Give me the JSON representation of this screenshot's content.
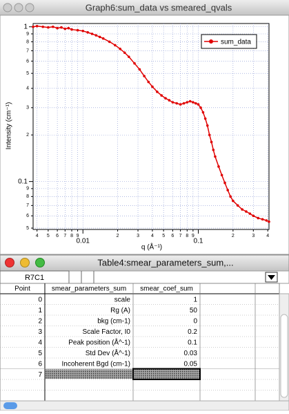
{
  "graph_window": {
    "title": "Graph6:sum_data vs smeared_qvals"
  },
  "chart_data": {
    "type": "line",
    "x_label": "q (Å⁻¹)",
    "y_label": "Intensity (cm⁻¹)",
    "log_x": true,
    "log_y": true,
    "grid": true,
    "legend": "top-right",
    "xlim": [
      0.0037,
      0.41
    ],
    "ylim": [
      0.049,
      1.05
    ],
    "xticks": [
      {
        "value": 0.004,
        "label": "4"
      },
      {
        "value": 0.005,
        "label": "5"
      },
      {
        "value": 0.006,
        "label": "6"
      },
      {
        "value": 0.007,
        "label": "7"
      },
      {
        "value": 0.008,
        "label": "8"
      },
      {
        "value": 0.009,
        "label": "9"
      },
      0.01,
      {
        "value": 0.02,
        "label": "2"
      },
      {
        "value": 0.03,
        "label": "3"
      },
      {
        "value": 0.04,
        "label": "4"
      },
      {
        "value": 0.05,
        "label": "5"
      },
      {
        "value": 0.06,
        "label": "6"
      },
      {
        "value": 0.07,
        "label": "7"
      },
      {
        "value": 0.08,
        "label": "8"
      },
      {
        "value": 0.09,
        "label": "9"
      },
      0.1,
      {
        "value": 0.2,
        "label": "2"
      },
      {
        "value": 0.3,
        "label": "3"
      },
      {
        "value": 0.4,
        "label": "4"
      }
    ],
    "yticks": [
      1,
      {
        "value": 0.9,
        "label": "9"
      },
      {
        "value": 0.8,
        "label": "8"
      },
      {
        "value": 0.7,
        "label": "7"
      },
      {
        "value": 0.6,
        "label": "6"
      },
      {
        "value": 0.5,
        "label": "5"
      },
      {
        "value": 0.4,
        "label": "4"
      },
      {
        "value": 0.3,
        "label": "3"
      },
      {
        "value": 0.2,
        "label": "2"
      },
      0.1,
      {
        "value": 0.09,
        "label": "9"
      },
      {
        "value": 0.08,
        "label": "8"
      },
      {
        "value": 0.07,
        "label": "7"
      },
      {
        "value": 0.06,
        "label": "6"
      },
      {
        "value": 0.05,
        "label": "5"
      }
    ],
    "x": [
      0.0037,
      0.004,
      0.0045,
      0.005,
      0.0055,
      0.006,
      0.0065,
      0.007,
      0.0075,
      0.008,
      0.009,
      0.01,
      0.011,
      0.012,
      0.013,
      0.014,
      0.015,
      0.017,
      0.019,
      0.021,
      0.023,
      0.025,
      0.028,
      0.031,
      0.034,
      0.037,
      0.04,
      0.044,
      0.048,
      0.052,
      0.056,
      0.06,
      0.065,
      0.07,
      0.075,
      0.08,
      0.085,
      0.09,
      0.095,
      0.1,
      0.105,
      0.11,
      0.115,
      0.12,
      0.125,
      0.13,
      0.135,
      0.14,
      0.15,
      0.16,
      0.17,
      0.18,
      0.19,
      0.2,
      0.22,
      0.24,
      0.26,
      0.28,
      0.3,
      0.33,
      0.36,
      0.39,
      0.41
    ],
    "series": [
      {
        "name": "sum_data",
        "color": "#e00000",
        "values": [
          1.0,
          1.01,
          1.0,
          0.99,
          1.0,
          0.98,
          0.99,
          0.97,
          0.98,
          0.96,
          0.95,
          0.94,
          0.92,
          0.9,
          0.88,
          0.86,
          0.84,
          0.8,
          0.76,
          0.72,
          0.68,
          0.64,
          0.58,
          0.53,
          0.48,
          0.44,
          0.41,
          0.38,
          0.36,
          0.345,
          0.335,
          0.325,
          0.32,
          0.315,
          0.32,
          0.325,
          0.33,
          0.325,
          0.32,
          0.315,
          0.3,
          0.28,
          0.255,
          0.23,
          0.2,
          0.18,
          0.16,
          0.145,
          0.125,
          0.11,
          0.098,
          0.088,
          0.08,
          0.075,
          0.07,
          0.066,
          0.064,
          0.062,
          0.06,
          0.058,
          0.057,
          0.056,
          0.055
        ]
      }
    ]
  },
  "table_window": {
    "title": "Table4:smear_parameters_sum,...",
    "cell_ref": "R7C1",
    "columns": [
      "Point",
      "smear_parameters_sum",
      "smear_coef_sum"
    ],
    "rows": [
      [
        "0",
        "scale",
        "1"
      ],
      [
        "1",
        "Rg (A)",
        "50"
      ],
      [
        "2",
        "bkg (cm-1)",
        "0"
      ],
      [
        "3",
        "Scale Factor, I0",
        "0.2"
      ],
      [
        "4",
        "Peak position (Å^-1)",
        "0.1"
      ],
      [
        "5",
        "Std Dev (Å^-1)",
        "0.03"
      ],
      [
        "6",
        "Incoherent Bgd (cm-1)",
        "0.05"
      ]
    ],
    "new_row_point": "7"
  }
}
